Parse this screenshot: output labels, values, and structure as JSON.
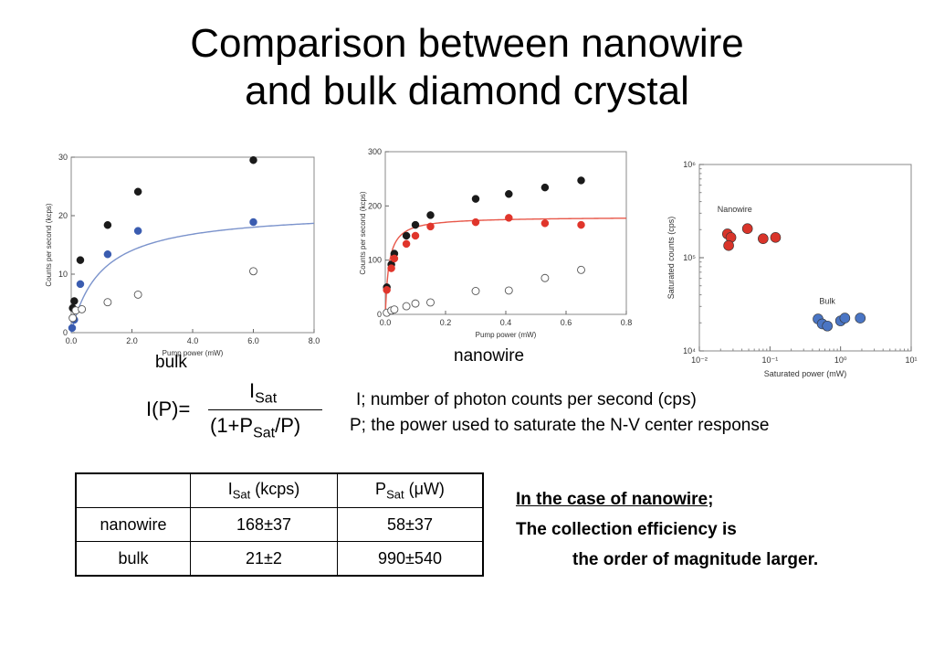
{
  "title_line1": "Comparison between nanowire",
  "title_line2": "and bulk diamond crystal",
  "chart_data": [
    {
      "type": "scatter",
      "caption": "bulk",
      "xlabel": "Pump power (mW)",
      "ylabel": "Counts per second (kcps)",
      "xlim": [
        0,
        8
      ],
      "ylim": [
        0,
        30
      ],
      "xticks": [
        0,
        2,
        4,
        6,
        8
      ],
      "xtick_labels": [
        "0.0",
        "2.0",
        "4.0",
        "6.0",
        "8.0"
      ],
      "yticks": [
        0,
        10,
        20,
        30
      ],
      "ytick_labels": [
        "0",
        "10",
        "20",
        "30"
      ],
      "fit": {
        "isat": 21,
        "psat": 0.99,
        "color": "#7b93cc"
      },
      "series": [
        {
          "marker": "filled",
          "color": "#1a1a1a",
          "x": [
            0.05,
            0.1,
            0.3,
            1.2,
            2.2,
            6.0
          ],
          "y": [
            4.2,
            5.4,
            12.4,
            18.4,
            24.1,
            29.5
          ]
        },
        {
          "marker": "filled",
          "color": "#3a5cb0",
          "x": [
            0.03,
            0.1,
            0.3,
            1.2,
            2.2,
            6.0
          ],
          "y": [
            0.8,
            2.2,
            8.3,
            13.4,
            17.4,
            18.9
          ]
        },
        {
          "marker": "open",
          "color": "#555555",
          "x": [
            0.05,
            0.15,
            0.35,
            1.2,
            2.2,
            6.0
          ],
          "y": [
            2.5,
            3.8,
            4.0,
            5.2,
            6.5,
            10.5
          ]
        }
      ]
    },
    {
      "type": "scatter",
      "caption": "nanowire",
      "xlabel": "Pump power (mW)",
      "ylabel": "Counts per second (kcps)",
      "xlim": [
        0,
        0.8
      ],
      "ylim": [
        0,
        300
      ],
      "xticks": [
        0,
        0.2,
        0.4,
        0.6,
        0.8
      ],
      "xtick_labels": [
        "0.0",
        "0.2",
        "0.4",
        "0.6",
        "0.8"
      ],
      "yticks": [
        0,
        100,
        200,
        300
      ],
      "ytick_labels": [
        "0",
        "100",
        "200",
        "300"
      ],
      "fit": {
        "isat": 180,
        "psat": 0.012,
        "color": "#e8584a"
      },
      "series": [
        {
          "marker": "filled",
          "color": "#1a1a1a",
          "x": [
            0.005,
            0.02,
            0.03,
            0.07,
            0.1,
            0.15,
            0.3,
            0.41,
            0.53,
            0.65
          ],
          "y": [
            50,
            92,
            112,
            145,
            165,
            183,
            213,
            222,
            234,
            247
          ]
        },
        {
          "marker": "filled",
          "color": "#e0352b",
          "x": [
            0.005,
            0.02,
            0.03,
            0.07,
            0.1,
            0.15,
            0.3,
            0.41,
            0.53,
            0.65
          ],
          "y": [
            45,
            85,
            103,
            130,
            145,
            162,
            170,
            178,
            168,
            165
          ]
        },
        {
          "marker": "open",
          "color": "#555555",
          "x": [
            0.005,
            0.02,
            0.03,
            0.07,
            0.1,
            0.15,
            0.3,
            0.41,
            0.53,
            0.65
          ],
          "y": [
            3,
            7,
            9,
            15,
            20,
            22,
            43,
            44,
            67,
            82
          ]
        }
      ]
    },
    {
      "type": "scatter",
      "xlabel": "Saturated power (mW)",
      "ylabel": "Saturated counts (cps)",
      "xscale": "log",
      "yscale": "log",
      "xlim": [
        0.01,
        10
      ],
      "ylim": [
        10000,
        1000000
      ],
      "xtick_labels": [
        "10⁻²",
        "10⁻¹",
        "10⁰",
        "10¹"
      ],
      "ytick_labels": [
        "10⁴",
        "10⁵",
        "10⁶"
      ],
      "annotations": [
        "Nanowire",
        "Bulk"
      ],
      "series": [
        {
          "marker": "filled",
          "color": "#d9342a",
          "x": [
            0.025,
            0.028,
            0.026,
            0.048,
            0.08,
            0.12
          ],
          "y": [
            180000,
            165000,
            135000,
            205000,
            160000,
            165000
          ]
        },
        {
          "marker": "filled",
          "color": "#4a75c4",
          "x": [
            0.48,
            0.55,
            0.65,
            1.0,
            1.15,
            1.9
          ],
          "y": [
            22000,
            19500,
            18500,
            21000,
            22500,
            22500
          ]
        }
      ]
    }
  ],
  "formula": {
    "lhs": "I(P)=",
    "num_main": "I",
    "num_sub": "Sat",
    "den_start": "(1+P",
    "den_sub": "Sat",
    "den_end": "/P)"
  },
  "definitions": {
    "i_def": "I; number of photon counts per second (cps)",
    "p_def": "P; the power used to saturate the N-V center response"
  },
  "table": {
    "col1_main": "I",
    "col1_sub": "Sat",
    "col1_unit": " (kcps)",
    "col2_main": "P",
    "col2_sub": "Sat",
    "col2_unit": " (μW)",
    "rows": [
      {
        "label": "nanowire",
        "isat": "168±37",
        "psat": "58±37"
      },
      {
        "label": "bulk",
        "isat": "21±2",
        "psat": "990±540"
      }
    ]
  },
  "note": {
    "line1_underlined": "In the case of nanowire",
    "line1_tail": ";",
    "line2": "The collection efficiency is",
    "line3": "the order of magnitude larger."
  }
}
